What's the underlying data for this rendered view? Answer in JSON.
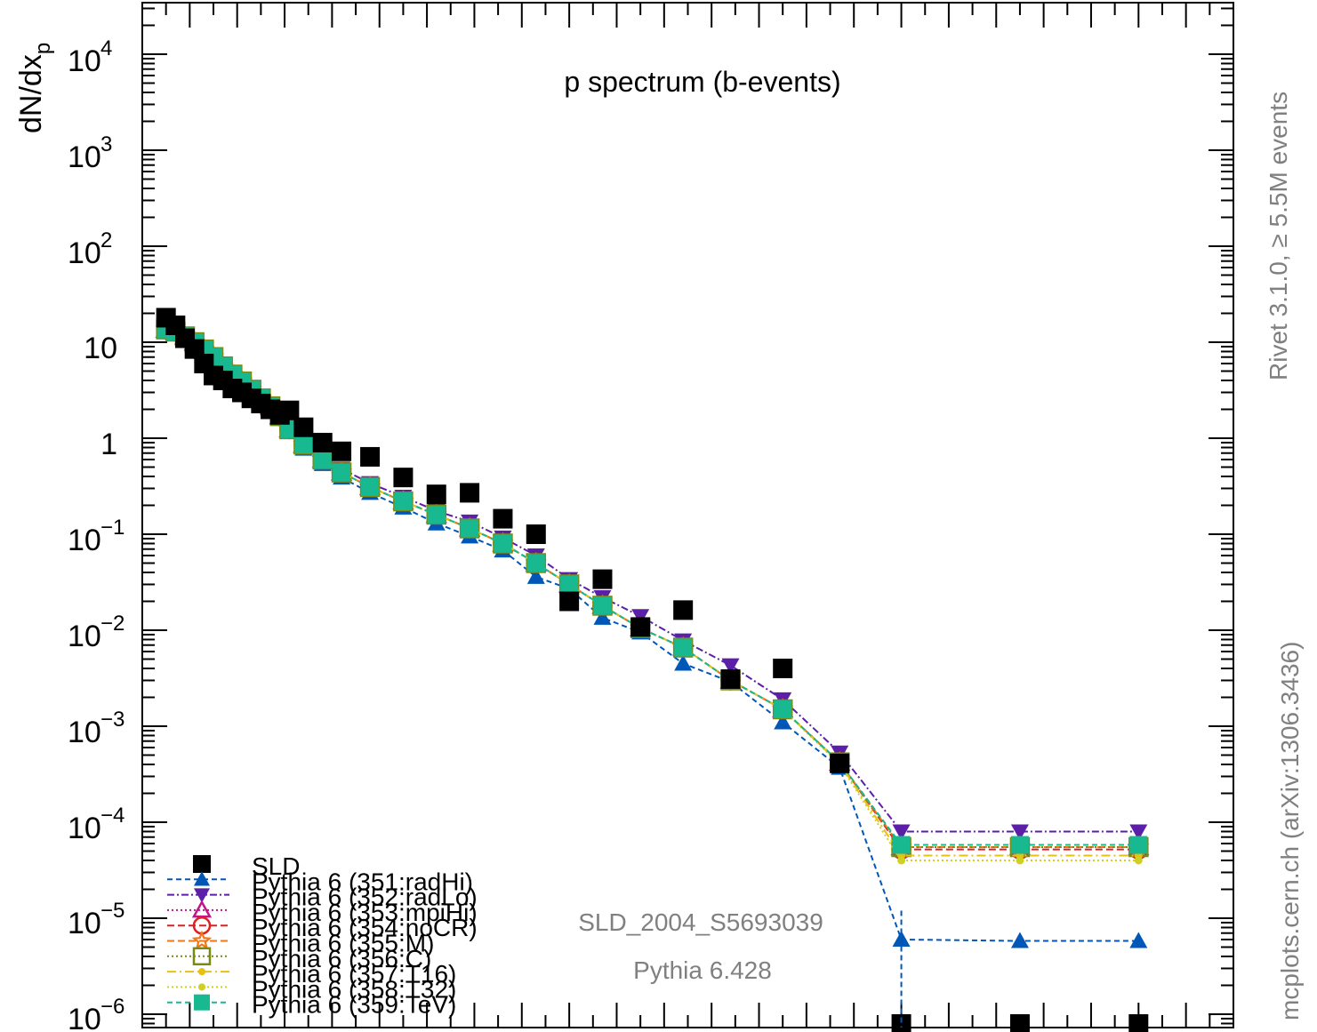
{
  "chart_data": {
    "type": "scatter",
    "title": "p spectrum (b-events)",
    "ylabel_main": "dN/dx",
    "ylabel_sub": "p",
    "yscale": "log",
    "ylim": [
      5e-07,
      30000
    ],
    "xlim": [
      0,
      2.3
    ],
    "ytick_labels": {
      "t4": "4",
      "t3": "3",
      "t2": "2",
      "t1": "10",
      "t0": "1",
      "tm1": "−1",
      "tm2": "−2",
      "tm3": "−3",
      "tm4": "−4",
      "tm5": "−5",
      "tm6": "−6"
    },
    "annotation_analysis": "SLD_2004_S5693039",
    "annotation_generator": "Pythia 6.428",
    "side_label_top": "Rivet 3.1.0, ≥ 5.5M events",
    "side_label_bottom": "mcplots.cern.ch (arXiv:1306.3436)",
    "x": [
      0.05,
      0.07,
      0.09,
      0.11,
      0.13,
      0.15,
      0.17,
      0.19,
      0.21,
      0.23,
      0.25,
      0.27,
      0.29,
      0.31,
      0.34,
      0.38,
      0.42,
      0.48,
      0.55,
      0.62,
      0.69,
      0.76,
      0.83,
      0.9,
      0.97,
      1.05,
      1.14,
      1.24,
      1.35,
      1.47,
      1.6,
      1.85,
      2.1
    ],
    "series": [
      {
        "name": "SLD",
        "color": "#000000",
        "marker": "square",
        "values": [
          18.0,
          15.0,
          11.0,
          8.5,
          6.0,
          4.5,
          4.0,
          3.3,
          3.0,
          2.6,
          2.3,
          2.0,
          1.75,
          1.95,
          1.3,
          0.9,
          0.73,
          0.64,
          0.39,
          0.26,
          0.27,
          0.145,
          0.1,
          0.02,
          0.034,
          0.0108,
          0.0162,
          0.0031,
          0.004,
          0.00041,
          4.5e-07,
          4.5e-07,
          4.5e-07
        ]
      },
      {
        "name": "Pythia 6 (351:radHi)",
        "color": "#0057b8",
        "marker": "triangle-up",
        "dash": "6,4",
        "values": [
          13.2,
          12.5,
          11.2,
          9.8,
          8.2,
          6.8,
          5.5,
          4.5,
          3.8,
          3.1,
          2.5,
          2.1,
          1.65,
          1.18,
          0.78,
          0.54,
          0.39,
          0.27,
          0.19,
          0.13,
          0.095,
          0.068,
          0.036,
          0.027,
          0.0135,
          0.0095,
          0.0045,
          0.0029,
          0.0011,
          0.00037,
          6e-06,
          5.8e-06,
          5.8e-06
        ]
      },
      {
        "name": "Pythia 6 (352:radLo)",
        "color": "#5b1fa8",
        "marker": "triangle-down",
        "dash": "8,3,2,3",
        "values": [
          14.2,
          13.4,
          12.0,
          10.4,
          8.7,
          7.2,
          5.8,
          4.8,
          4.0,
          3.3,
          2.7,
          2.25,
          1.78,
          1.3,
          0.92,
          0.65,
          0.48,
          0.34,
          0.245,
          0.175,
          0.135,
          0.092,
          0.06,
          0.034,
          0.022,
          0.014,
          0.0078,
          0.0043,
          0.0019,
          0.00053,
          8e-05,
          8e-05,
          8e-05
        ]
      },
      {
        "name": "Pythia 6 (353:mpiHi)",
        "color": "#c2148a",
        "marker": "triangle-up-open",
        "dash": "2,3",
        "values": [
          13.6,
          12.9,
          11.5,
          10.0,
          8.4,
          7.0,
          5.6,
          4.6,
          3.9,
          3.2,
          2.6,
          2.15,
          1.7,
          1.24,
          0.86,
          0.6,
          0.44,
          0.31,
          0.22,
          0.16,
          0.115,
          0.08,
          0.05,
          0.03,
          0.018,
          0.0105,
          0.0066,
          0.003,
          0.0015,
          0.00042,
          5.5e-05,
          5.5e-05,
          5.5e-05
        ]
      },
      {
        "name": "Pythia 6 (354:noCR)",
        "color": "#e02020",
        "marker": "circle-open",
        "dash": "8,4",
        "values": [
          13.6,
          12.9,
          11.5,
          10.0,
          8.4,
          7.0,
          5.6,
          4.6,
          3.9,
          3.2,
          2.6,
          2.15,
          1.7,
          1.24,
          0.86,
          0.6,
          0.44,
          0.31,
          0.22,
          0.16,
          0.115,
          0.08,
          0.05,
          0.03,
          0.018,
          0.0105,
          0.0066,
          0.003,
          0.0015,
          0.00042,
          5.2e-05,
          5.2e-05,
          5.2e-05
        ]
      },
      {
        "name": "Pythia 6 (355:M)",
        "color": "#f07818",
        "marker": "star-open",
        "dash": "8,4",
        "values": [
          13.6,
          12.9,
          11.5,
          10.0,
          8.4,
          7.0,
          5.6,
          4.6,
          3.9,
          3.2,
          2.6,
          2.15,
          1.7,
          1.24,
          0.86,
          0.6,
          0.44,
          0.31,
          0.22,
          0.16,
          0.115,
          0.08,
          0.05,
          0.03,
          0.018,
          0.0105,
          0.0066,
          0.003,
          0.0015,
          0.00042,
          5.5e-05,
          5.5e-05,
          5.5e-05
        ]
      },
      {
        "name": "Pythia 6 (356:C)",
        "color": "#7a8a10",
        "marker": "square-open",
        "dash": "2,3",
        "values": [
          13.6,
          12.9,
          11.5,
          10.0,
          8.4,
          7.0,
          5.6,
          4.6,
          3.9,
          3.2,
          2.6,
          2.15,
          1.7,
          1.24,
          0.86,
          0.6,
          0.44,
          0.31,
          0.22,
          0.16,
          0.115,
          0.08,
          0.05,
          0.03,
          0.018,
          0.0105,
          0.0066,
          0.003,
          0.0015,
          0.00042,
          5.5e-05,
          5.5e-05,
          5.5e-05
        ]
      },
      {
        "name": "Pythia 6 (357:T16)",
        "color": "#e8c010",
        "marker": "dot",
        "dash": "10,4,2,4",
        "values": [
          13.6,
          12.9,
          11.5,
          10.0,
          8.4,
          7.0,
          5.6,
          4.6,
          3.9,
          3.2,
          2.6,
          2.15,
          1.7,
          1.24,
          0.86,
          0.6,
          0.44,
          0.31,
          0.22,
          0.16,
          0.115,
          0.08,
          0.05,
          0.03,
          0.018,
          0.0105,
          0.0066,
          0.003,
          0.0015,
          0.00041,
          4.5e-05,
          4.5e-05,
          4.5e-05
        ]
      },
      {
        "name": "Pythia 6 (358:T32)",
        "color": "#d0d020",
        "marker": "dot",
        "dash": "2,3",
        "values": [
          13.6,
          12.9,
          11.5,
          10.0,
          8.4,
          7.0,
          5.6,
          4.6,
          3.9,
          3.2,
          2.6,
          2.15,
          1.7,
          1.24,
          0.86,
          0.6,
          0.44,
          0.31,
          0.22,
          0.16,
          0.115,
          0.08,
          0.05,
          0.03,
          0.018,
          0.0105,
          0.0066,
          0.003,
          0.0015,
          0.0004,
          4e-05,
          4e-05,
          4e-05
        ]
      },
      {
        "name": "Pythia 6 (359:TeV)",
        "color": "#18b890",
        "marker": "square",
        "dash": "6,4",
        "values": [
          13.6,
          12.9,
          11.5,
          10.0,
          8.4,
          7.0,
          5.6,
          4.6,
          3.9,
          3.2,
          2.6,
          2.15,
          1.7,
          1.24,
          0.86,
          0.6,
          0.44,
          0.31,
          0.22,
          0.16,
          0.115,
          0.08,
          0.05,
          0.03,
          0.018,
          0.0105,
          0.0066,
          0.003,
          0.0015,
          0.00042,
          5.8e-05,
          5.8e-05,
          5.8e-05
        ]
      }
    ]
  }
}
